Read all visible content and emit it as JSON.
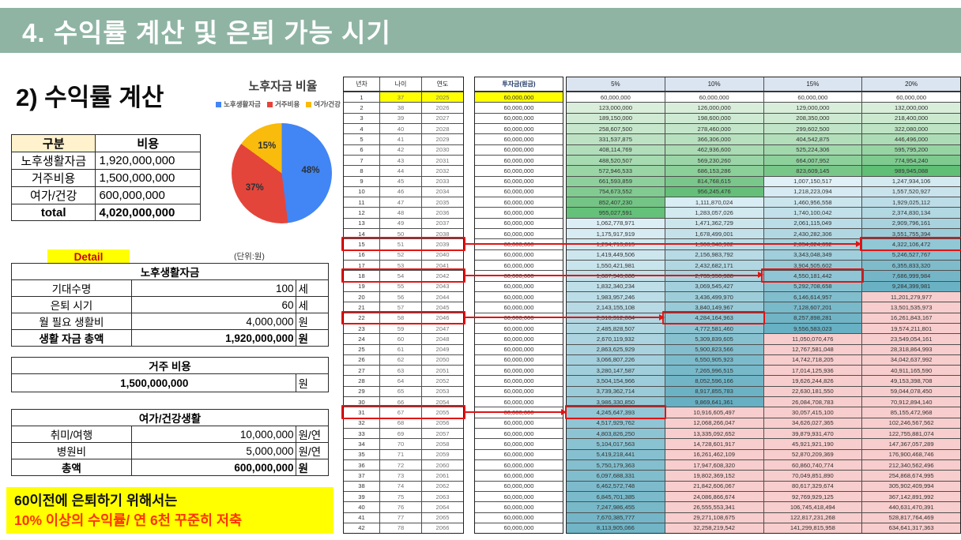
{
  "slide_title": "4. 수익률 계산 및 은퇴 가능 시기",
  "section_title": "2) 수익률 계산",
  "cost_table": {
    "headers": [
      "구분",
      "비용"
    ],
    "rows": [
      [
        "노후생활자금",
        "1,920,000,000"
      ],
      [
        "거주비용",
        "1,500,000,000"
      ],
      [
        "여가/건강",
        "600,000,000"
      ],
      [
        "total",
        "4,020,000,000"
      ]
    ]
  },
  "pie": {
    "title": "노후자금 비율",
    "slices": [
      {
        "label": "노후생활자금",
        "pct": 48,
        "pct_label": "48%",
        "color": "#4285f4"
      },
      {
        "label": "거주비용",
        "pct": 37,
        "pct_label": "37%",
        "color": "#e4453a"
      },
      {
        "label": "여가/건강",
        "pct": 15,
        "pct_label": "15%",
        "color": "#f9bb0c"
      }
    ]
  },
  "chart_data": {
    "type": "pie",
    "title": "노후자금 비율",
    "labels": [
      "노후생활자금",
      "거주비용",
      "여가/건강"
    ],
    "values": [
      48,
      37,
      15
    ],
    "legend_position": "top"
  },
  "detail": {
    "label": "Detail",
    "unit_note": "(단위:원)",
    "life_table": {
      "title": "노후생활자금",
      "rows": [
        [
          "기대수명",
          "100",
          "세"
        ],
        [
          "은퇴 시기",
          "60",
          "세"
        ],
        [
          "월 필요 생활비",
          "4,000,000",
          "원"
        ],
        [
          "생활 자금 총액",
          "1,920,000,000",
          "원"
        ]
      ]
    },
    "housing_table": {
      "title": "거주 비용",
      "value": "1,500,000,000",
      "unit": "원"
    },
    "leisure_table": {
      "title": "여가/건강생활",
      "rows": [
        [
          "취미/여행",
          "10,000,000",
          "원/연"
        ],
        [
          "병원비",
          "5,000,000",
          "원/연"
        ],
        [
          "총액",
          "600,000,000",
          "원"
        ]
      ]
    }
  },
  "note": {
    "line1": "60이전에 은퇴하기 위해서는",
    "line2": "10% 이상의 수익률/ 연 6천 꾸준히 저축"
  },
  "big_table": {
    "group1_headers": [
      "년차",
      "나이",
      "연도"
    ],
    "invest_header": "투자금(원금)",
    "rate_headers": [
      "5%",
      "10%",
      "15%",
      "20%"
    ],
    "years": [
      1,
      2,
      3,
      4,
      5,
      6,
      7,
      8,
      9,
      10,
      11,
      12,
      13,
      14,
      15,
      16,
      17,
      18,
      19,
      20,
      21,
      22,
      23,
      24,
      25,
      26,
      27,
      28,
      29,
      30,
      31,
      32,
      33,
      34,
      35,
      36,
      37,
      38,
      39,
      40,
      41,
      42
    ],
    "ages": [
      37,
      38,
      39,
      40,
      41,
      42,
      43,
      44,
      45,
      46,
      47,
      48,
      49,
      50,
      51,
      52,
      53,
      54,
      55,
      56,
      57,
      58,
      59,
      60,
      61,
      62,
      63,
      64,
      65,
      66,
      67,
      68,
      69,
      70,
      71,
      72,
      73,
      74,
      75,
      76,
      77,
      78
    ],
    "cal_years": [
      2025,
      2026,
      2027,
      2028,
      2029,
      2030,
      2031,
      2032,
      2033,
      2034,
      2035,
      2036,
      2037,
      2038,
      2039,
      2040,
      2041,
      2042,
      2043,
      2044,
      2045,
      2046,
      2047,
      2048,
      2049,
      2050,
      2051,
      2052,
      2053,
      2054,
      2055,
      2056,
      2057,
      2058,
      2059,
      2060,
      2061,
      2062,
      2063,
      2064,
      2065,
      2066
    ],
    "invest_value": 60000000,
    "values_5": [
      60000000,
      123000000,
      189150000,
      258607500,
      331537875,
      408114769,
      488520507,
      572946533,
      661593859,
      754673552,
      852407230,
      955027591,
      1062778971,
      1175917919,
      1294713815,
      1419449506,
      1550421981,
      1687943080,
      1832340234,
      1983957246,
      2143155108,
      2310312864,
      2485828507,
      2670119932,
      2863625929,
      3066807226,
      3280147587,
      3504154966,
      3739362714,
      3986330850,
      4245647393,
      4517929762,
      4803826250,
      5104017563,
      5419218441,
      5750179363,
      6097688331,
      6462572748,
      6845701385,
      7247986455,
      7670385777,
      8113905066
    ],
    "values_10": [
      60000000,
      126000000,
      198600000,
      278460000,
      366306000,
      462936600,
      569230260,
      686153286,
      814768615,
      956245476,
      1111870024,
      1283057026,
      1471362729,
      1678499001,
      1906348902,
      2156983792,
      2432682171,
      2735950388,
      3069545427,
      3436499970,
      3840149967,
      4284164963,
      4772581460,
      5309839605,
      5900823566,
      6550905923,
      7265996515,
      8052596166,
      8917855783,
      9869641361,
      10916605497,
      12068266047,
      13335092652,
      14728601917,
      16261462109,
      17947608320,
      19802369152,
      21842606067,
      24086866674,
      26555553341,
      29271108675,
      32258219542
    ],
    "values_15": [
      60000000,
      129000000,
      208350000,
      299602500,
      404542875,
      525224306,
      664007952,
      823609145,
      1007150517,
      1218223094,
      1460956558,
      1740100042,
      2061115049,
      2430282306,
      2854824652,
      3343048349,
      3904505602,
      4550181442,
      5292708658,
      6146614957,
      7128607201,
      8257898281,
      9556583023,
      11050070476,
      12767581048,
      14742718205,
      17014125936,
      19626244826,
      22630181550,
      26084708783,
      30057415100,
      34626027365,
      39879931470,
      45921921190,
      52870209369,
      60860740774,
      70049851890,
      80617329674,
      92769929125,
      106745418494,
      122817231268,
      141299815958
    ],
    "values_20": [
      60000000,
      132000000,
      218400000,
      322080000,
      446496000,
      595795200,
      774954240,
      989945088,
      1247934106,
      1557520927,
      1929025112,
      2374830134,
      2909796161,
      3551755394,
      4322106472,
      5246527767,
      6355833320,
      7686999984,
      9284399981,
      11201279977,
      13501535973,
      16261843167,
      19574211801,
      23549054161,
      28318864993,
      34042637992,
      40911165590,
      49153398708,
      59044078450,
      70912894140,
      85155472968,
      102246567562,
      122755881074,
      147367057289,
      176900468746,
      212340562496,
      254868674995,
      305902409994,
      367142891992,
      440631470391,
      528817764469,
      634641317363
    ],
    "annotations": [
      {
        "row": 15,
        "rate": "20%"
      },
      {
        "row": 18,
        "rate": "15%"
      },
      {
        "row": 22,
        "rate": "10%"
      },
      {
        "row": 31,
        "rate": "5%"
      }
    ]
  },
  "colors": {
    "header_green": "#8fb4a4",
    "yellow": "#ffff00",
    "khaki_header": "#fff2cc",
    "note_red": "#ff3300",
    "detail_red": "#d00000",
    "rate_header_bg": "#dbe5f1",
    "annotation_red": "#e01414",
    "band_green_lo": "#eaf5ea",
    "band_green_hi": "#5fbd74",
    "band_blue_lo": "#dff0f6",
    "band_blue_hi": "#66afc2",
    "band_pink": "#f8cdcd"
  }
}
